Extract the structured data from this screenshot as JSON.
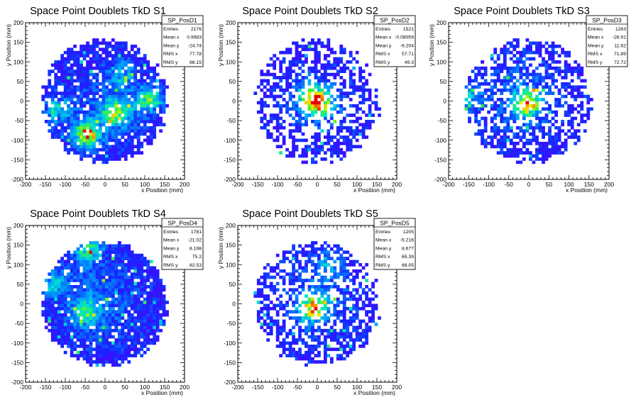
{
  "chart_data": [
    {
      "type": "heatmap",
      "title": "Space Point Doublets TkD S1",
      "xlabel": "x Position (mm)",
      "ylabel": "y Position (mm)",
      "xlim": [
        -200,
        200
      ],
      "ylim": [
        -200,
        200
      ],
      "xticks": [
        "-200",
        "-150",
        "-100",
        "-50",
        "0",
        "50",
        "100",
        "150",
        "200"
      ],
      "yticks": [
        "-200",
        "-150",
        "-100",
        "-50",
        "0",
        "50",
        "100",
        "150",
        "200"
      ],
      "stats": {
        "name": "SP_PosD1",
        "rows": [
          {
            "label": "Entries",
            "value": "2176"
          },
          {
            "label": "Mean x",
            "value": "0.9983"
          },
          {
            "label": "Mean y",
            "value": "-24.74"
          },
          {
            "label": "RMS x",
            "value": "77.78"
          },
          {
            "label": "RMS y",
            "value": "66.15"
          }
        ]
      },
      "mean_x": 0.9983,
      "mean_y": -24.74,
      "rms_x": 77.78,
      "rms_y": 66.15,
      "occupancy": 0.85,
      "hotspots": [
        {
          "x": -45,
          "y": -85,
          "w": 1.0
        },
        {
          "x": 30,
          "y": -30,
          "w": 0.8
        },
        {
          "x": -120,
          "y": -20,
          "w": 0.5
        },
        {
          "x": 110,
          "y": 5,
          "w": 0.7
        },
        {
          "x": 40,
          "y": 70,
          "w": 0.45
        }
      ]
    },
    {
      "type": "heatmap",
      "title": "Space Point Doublets TkD S2",
      "xlabel": "x Position (mm)",
      "ylabel": "y Position (mm)",
      "xlim": [
        -200,
        200
      ],
      "ylim": [
        -200,
        200
      ],
      "xticks": [
        "-200",
        "-150",
        "-100",
        "-50",
        "0",
        "50",
        "100",
        "150",
        "200"
      ],
      "yticks": [
        "-200",
        "-150",
        "-100",
        "-50",
        "0",
        "50",
        "100",
        "150",
        "200"
      ],
      "stats": {
        "name": "SP_PosD2",
        "rows": [
          {
            "label": "Entries",
            "value": "1521"
          },
          {
            "label": "Mean x",
            "value": "-0.08059"
          },
          {
            "label": "Mean y",
            "value": "-9.204"
          },
          {
            "label": "RMS x",
            "value": "57.71"
          },
          {
            "label": "RMS y",
            "value": "49.3"
          }
        ]
      },
      "mean_x": -0.08059,
      "mean_y": -9.204,
      "rms_x": 57.71,
      "rms_y": 49.3,
      "occupancy": 0.55,
      "hotspots": [
        {
          "x": 5,
          "y": -5,
          "w": 1.0
        },
        {
          "x": -20,
          "y": 20,
          "w": 0.6
        }
      ]
    },
    {
      "type": "heatmap",
      "title": "Space Point Doublets TkD S3",
      "xlabel": "x Position (mm)",
      "ylabel": "y Position (mm)",
      "xlim": [
        -200,
        200
      ],
      "ylim": [
        -200,
        200
      ],
      "xticks": [
        "-200",
        "-150",
        "-100",
        "-50",
        "0",
        "50",
        "100",
        "150",
        "200"
      ],
      "yticks": [
        "-200",
        "-150",
        "-100",
        "-50",
        "0",
        "50",
        "100",
        "150",
        "200"
      ],
      "stats": {
        "name": "SP_PosD3",
        "rows": [
          {
            "label": "Entries",
            "value": "1263"
          },
          {
            "label": "Mean x",
            "value": "-26.91"
          },
          {
            "label": "Mean y",
            "value": "11.62"
          },
          {
            "label": "RMS x",
            "value": "71.89"
          },
          {
            "label": "RMS y",
            "value": "72.72"
          }
        ]
      },
      "mean_x": -26.91,
      "mean_y": 11.62,
      "rms_x": 71.89,
      "rms_y": 72.72,
      "occupancy": 0.6,
      "hotspots": [
        {
          "x": -5,
          "y": -5,
          "w": 1.0
        },
        {
          "x": -150,
          "y": 10,
          "w": 0.4
        }
      ]
    },
    {
      "type": "heatmap",
      "title": "Space Point Doublets TkD S4",
      "xlabel": "x Position (mm)",
      "ylabel": "y Position (mm)",
      "xlim": [
        -200,
        200
      ],
      "ylim": [
        -200,
        200
      ],
      "xticks": [
        "-200",
        "-150",
        "-100",
        "-50",
        "0",
        "50",
        "100",
        "150",
        "200"
      ],
      "yticks": [
        "-200",
        "-150",
        "-100",
        "-50",
        "0",
        "50",
        "100",
        "150",
        "200"
      ],
      "stats": {
        "name": "SP_PosD4",
        "rows": [
          {
            "label": "Entries",
            "value": "1781"
          },
          {
            "label": "Mean x",
            "value": "-21.02"
          },
          {
            "label": "Mean y",
            "value": "8.198"
          },
          {
            "label": "RMS x",
            "value": "75.2"
          },
          {
            "label": "RMS y",
            "value": "82.53"
          }
        ]
      },
      "mean_x": -21.02,
      "mean_y": 8.198,
      "rms_x": 75.2,
      "rms_y": 82.53,
      "occupancy": 0.92,
      "hotspots": [
        {
          "x": -40,
          "y": 140,
          "w": 0.7
        },
        {
          "x": -130,
          "y": 50,
          "w": 0.5
        },
        {
          "x": -50,
          "y": -20,
          "w": 0.6
        }
      ]
    },
    {
      "type": "heatmap",
      "title": "Space Point Doublets TkD S5",
      "xlabel": "x Position (mm)",
      "ylabel": "y Position (mm)",
      "xlim": [
        -200,
        200
      ],
      "ylim": [
        -200,
        200
      ],
      "xticks": [
        "-200",
        "-150",
        "-100",
        "-50",
        "0",
        "50",
        "100",
        "150",
        "200"
      ],
      "yticks": [
        "-200",
        "-150",
        "-100",
        "-50",
        "0",
        "50",
        "100",
        "150",
        "200"
      ],
      "stats": {
        "name": "SP_PosD5",
        "rows": [
          {
            "label": "Entries",
            "value": "1205"
          },
          {
            "label": "Mean x",
            "value": "-5.216"
          },
          {
            "label": "Mean y",
            "value": "8.677"
          },
          {
            "label": "RMS x",
            "value": "65.39"
          },
          {
            "label": "RMS y",
            "value": "68.05"
          }
        ]
      },
      "mean_x": -5.216,
      "mean_y": 8.677,
      "rms_x": 65.39,
      "rms_y": 68.05,
      "occupancy": 0.6,
      "hotspots": [
        {
          "x": -10,
          "y": -10,
          "w": 1.0
        },
        {
          "x": 30,
          "y": 100,
          "w": 0.4
        }
      ]
    }
  ]
}
